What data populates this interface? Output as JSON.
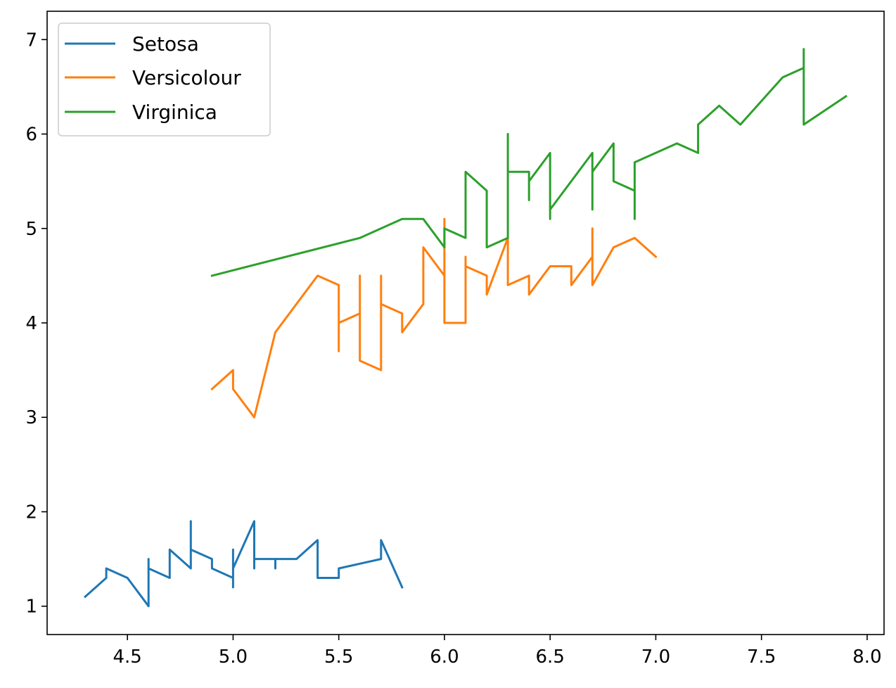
{
  "chart_data": {
    "type": "line",
    "title": "",
    "xlabel": "",
    "ylabel": "",
    "xlim": [
      4.12,
      8.08
    ],
    "ylim": [
      0.7,
      7.3
    ],
    "xticks": [
      4.5,
      5.0,
      5.5,
      6.0,
      6.5,
      7.0,
      7.5,
      8.0
    ],
    "xtick_labels": [
      "4.5",
      "5.0",
      "5.5",
      "6.0",
      "6.5",
      "7.0",
      "7.5",
      "8.0"
    ],
    "yticks": [
      1,
      2,
      3,
      4,
      5,
      6,
      7
    ],
    "ytick_labels": [
      "1",
      "2",
      "3",
      "4",
      "5",
      "6",
      "7"
    ],
    "grid": false,
    "legend_position": "top-left",
    "series": [
      {
        "name": "Setosa",
        "color": "#1f77b4",
        "x": [
          4.3,
          4.4,
          4.4,
          4.5,
          4.6,
          4.6,
          4.6,
          4.7,
          4.7,
          4.8,
          4.8,
          4.8,
          4.9,
          4.9,
          5.0,
          5.0,
          5.0,
          5.0,
          5.1,
          5.1,
          5.1,
          5.1,
          5.2,
          5.2,
          5.2,
          5.3,
          5.4,
          5.4,
          5.5,
          5.5,
          5.7,
          5.7,
          5.8
        ],
        "y": [
          1.1,
          1.3,
          1.4,
          1.3,
          1.0,
          1.5,
          1.4,
          1.3,
          1.6,
          1.4,
          1.9,
          1.6,
          1.5,
          1.4,
          1.3,
          1.2,
          1.6,
          1.4,
          1.9,
          1.4,
          1.7,
          1.5,
          1.5,
          1.4,
          1.5,
          1.5,
          1.7,
          1.3,
          1.3,
          1.4,
          1.5,
          1.7,
          1.2
        ]
      },
      {
        "name": "Versicolour",
        "color": "#ff7f0e",
        "x": [
          4.9,
          5.0,
          5.0,
          5.1,
          5.2,
          5.4,
          5.5,
          5.5,
          5.5,
          5.5,
          5.6,
          5.6,
          5.6,
          5.7,
          5.7,
          5.7,
          5.7,
          5.8,
          5.8,
          5.9,
          5.9,
          6.0,
          6.0,
          6.0,
          6.1,
          6.1,
          6.1,
          6.2,
          6.2,
          6.3,
          6.3,
          6.4,
          6.4,
          6.5,
          6.6,
          6.6,
          6.7,
          6.7,
          6.7,
          6.8,
          6.9,
          7.0
        ],
        "y": [
          3.3,
          3.5,
          3.3,
          3.0,
          3.9,
          4.5,
          4.4,
          3.7,
          3.8,
          4.0,
          4.1,
          4.5,
          3.6,
          3.5,
          4.5,
          4.1,
          4.2,
          4.1,
          3.9,
          4.2,
          4.8,
          4.5,
          5.1,
          4.0,
          4.0,
          4.7,
          4.6,
          4.5,
          4.3,
          4.9,
          4.4,
          4.5,
          4.3,
          4.6,
          4.6,
          4.4,
          4.7,
          5.0,
          4.4,
          4.8,
          4.9,
          4.7
        ]
      },
      {
        "name": "Virginica",
        "color": "#2ca02c",
        "x": [
          4.9,
          5.6,
          5.8,
          5.9,
          6.0,
          6.0,
          6.1,
          6.1,
          6.2,
          6.2,
          6.3,
          6.3,
          6.3,
          6.3,
          6.4,
          6.4,
          6.4,
          6.5,
          6.5,
          6.5,
          6.7,
          6.7,
          6.7,
          6.7,
          6.8,
          6.8,
          6.9,
          6.9,
          6.9,
          7.1,
          7.2,
          7.2,
          7.3,
          7.4,
          7.6,
          7.7,
          7.7,
          7.7,
          7.9
        ],
        "y": [
          4.5,
          4.9,
          5.1,
          5.1,
          4.8,
          5.0,
          4.9,
          5.6,
          5.4,
          4.8,
          4.9,
          6.0,
          5.1,
          5.6,
          5.6,
          5.3,
          5.5,
          5.8,
          5.1,
          5.2,
          5.8,
          5.2,
          5.7,
          5.6,
          5.9,
          5.5,
          5.4,
          5.1,
          5.7,
          5.9,
          5.8,
          6.1,
          6.3,
          6.1,
          6.6,
          6.7,
          6.9,
          6.1,
          6.4
        ]
      }
    ]
  }
}
